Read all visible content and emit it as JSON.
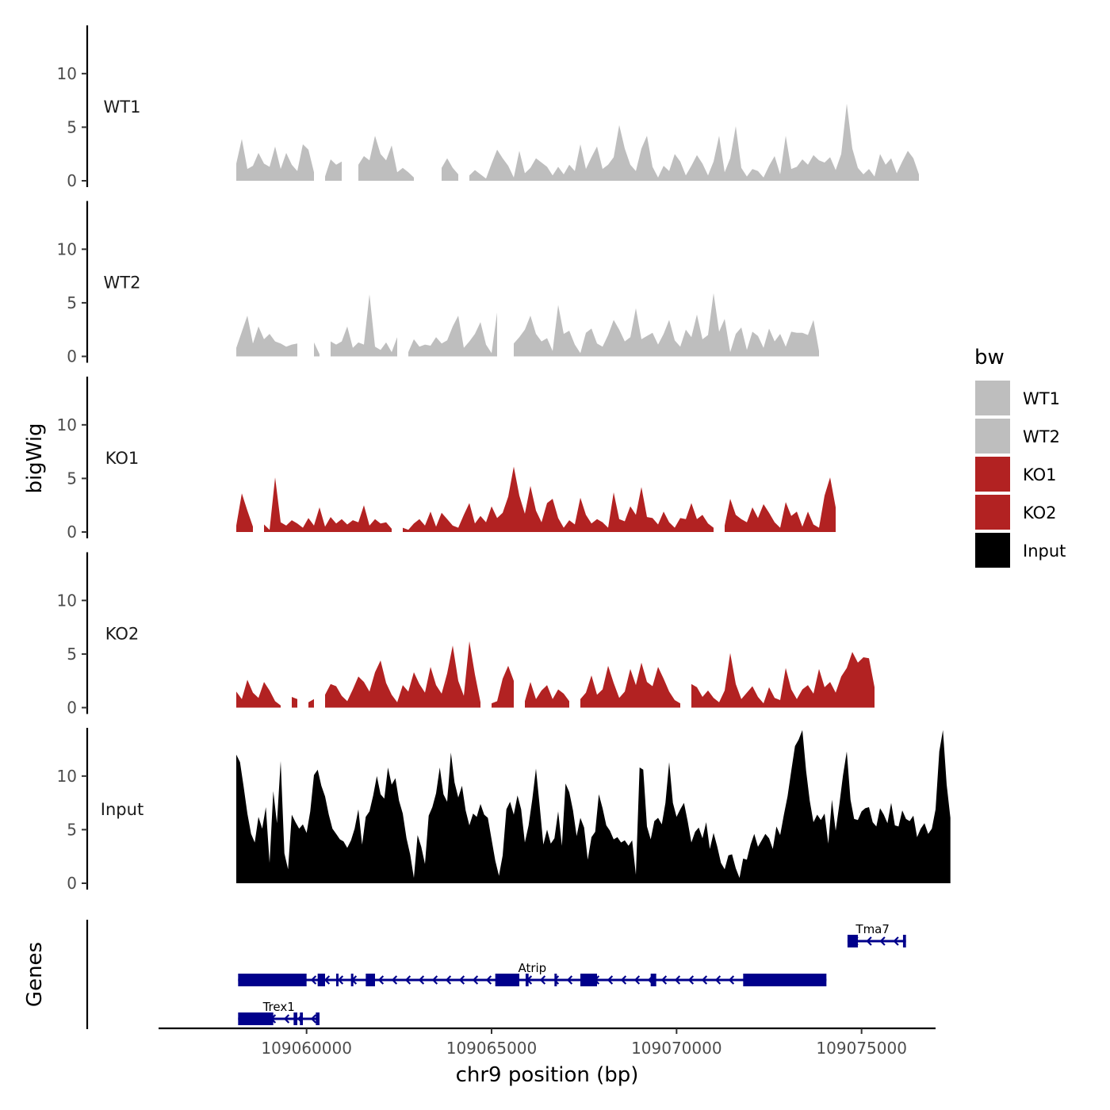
{
  "chart_data": {
    "type": "area",
    "title": "",
    "ylabel": "bigWig",
    "gene_track_label": "Genes",
    "xlabel": "chr9 position (bp)",
    "xlim": [
      109056000,
      109077000
    ],
    "ylim": [
      0,
      14.5
    ],
    "y_ticks": [
      0,
      5,
      10
    ],
    "x_ticks": [
      {
        "value": 109060000,
        "label": "109060000"
      },
      {
        "value": 109065000,
        "label": "109065000"
      },
      {
        "value": 109070000,
        "label": "109070000"
      },
      {
        "value": 109075000,
        "label": "109075000"
      }
    ],
    "grid": false,
    "legend": {
      "title": "bw",
      "position": "right",
      "entries": [
        {
          "label": "WT1",
          "color": "#bebebe"
        },
        {
          "label": "WT2",
          "color": "#bebebe"
        },
        {
          "label": "KO1",
          "color": "#b22222"
        },
        {
          "label": "KO2",
          "color": "#b22222"
        },
        {
          "label": "Input",
          "color": "#000000"
        }
      ]
    },
    "series": [
      {
        "name": "WT1",
        "label": "WT1",
        "color": "#bebebe",
        "x_start": 109058100,
        "step": 150,
        "values": [
          1.6,
          3.9,
          1.1,
          1.4,
          2.6,
          1.6,
          1.3,
          3.2,
          1.1,
          2.6,
          1.5,
          0.9,
          3.4,
          2.9,
          0.8,
          null,
          0.4,
          2.0,
          1.5,
          1.8,
          null,
          null,
          1.5,
          2.3,
          1.9,
          4.2,
          2.5,
          1.9,
          3.3,
          0.8,
          1.2,
          0.8,
          0.3,
          null,
          null,
          null,
          null,
          1.2,
          2.1,
          1.2,
          0.6,
          null,
          0.5,
          1.0,
          0.6,
          0.2,
          1.6,
          2.9,
          2.1,
          1.4,
          0.3,
          2.8,
          0.7,
          1.2,
          2.1,
          1.7,
          1.3,
          0.5,
          1.3,
          0.6,
          1.5,
          0.9,
          3.4,
          1.1,
          2.2,
          3.2,
          1.1,
          1.5,
          2.2,
          5.2,
          3.0,
          1.5,
          0.9,
          3.0,
          4.2,
          1.3,
          0.3,
          1.4,
          0.9,
          2.5,
          1.8,
          0.5,
          1.4,
          2.4,
          1.6,
          0.5,
          1.8,
          4.2,
          0.8,
          2.1,
          5.1,
          1.2,
          0.4,
          1.1,
          0.9,
          0.3,
          1.4,
          2.3,
          0.6,
          4.2,
          1.1,
          1.3,
          2.0,
          1.5,
          2.4,
          1.9,
          1.7,
          2.2,
          1.0,
          2.5,
          7.2,
          3.0,
          1.2,
          0.6,
          1.1,
          0.4,
          2.5,
          1.5,
          2.1,
          0.7,
          1.8,
          2.8,
          2.1,
          0.6
        ]
      },
      {
        "name": "WT2",
        "label": "WT2",
        "color": "#bebebe",
        "x_start": 109058100,
        "step": 150,
        "values": [
          0.8,
          2.3,
          3.8,
          1.2,
          2.8,
          1.6,
          2.1,
          1.4,
          1.2,
          0.9,
          1.1,
          1.2,
          null,
          null,
          1.3,
          0.2,
          null,
          1.4,
          1.1,
          1.4,
          2.8,
          0.8,
          1.3,
          1.1,
          5.8,
          0.9,
          0.6,
          1.3,
          0.4,
          1.8,
          null,
          0.4,
          1.6,
          0.9,
          1.1,
          1.0,
          1.8,
          1.2,
          1.5,
          2.8,
          3.8,
          0.8,
          1.4,
          2.1,
          3.2,
          1.1,
          0.3,
          4.1,
          null,
          null,
          1.2,
          1.8,
          2.5,
          3.8,
          2.1,
          1.4,
          1.7,
          0.5,
          4.8,
          2.1,
          2.4,
          1.1,
          0.3,
          2.2,
          2.6,
          1.2,
          0.9,
          2.0,
          3.4,
          2.5,
          1.4,
          1.8,
          4.5,
          1.6,
          1.9,
          2.2,
          1.1,
          2.1,
          3.4,
          1.5,
          0.9,
          2.5,
          1.8,
          3.9,
          1.6,
          2.0,
          5.9,
          2.3,
          3.5,
          0.4,
          2.1,
          2.7,
          0.6,
          2.3,
          1.9,
          0.8,
          2.6,
          1.4,
          2.1,
          0.9,
          2.3,
          2.2,
          2.2,
          2.0,
          3.4,
          0.5
        ]
      },
      {
        "name": "KO1",
        "label": "KO1",
        "color": "#b22222",
        "x_start": 109058100,
        "step": 150,
        "values": [
          0.6,
          3.6,
          2.0,
          0.5,
          null,
          0.7,
          0.2,
          5.1,
          0.9,
          0.6,
          1.1,
          0.8,
          0.4,
          1.3,
          0.6,
          2.3,
          0.5,
          1.4,
          0.8,
          1.2,
          0.7,
          1.1,
          0.9,
          2.5,
          0.6,
          1.2,
          0.8,
          0.9,
          0.3,
          null,
          0.4,
          0.2,
          0.8,
          1.2,
          0.6,
          1.9,
          0.5,
          1.8,
          1.2,
          0.6,
          0.4,
          1.6,
          2.7,
          0.8,
          1.5,
          0.9,
          2.4,
          1.3,
          1.8,
          3.3,
          6.1,
          3.4,
          1.7,
          4.3,
          2.0,
          0.9,
          2.7,
          3.1,
          1.3,
          0.4,
          1.1,
          0.7,
          3.2,
          1.6,
          0.8,
          1.2,
          0.9,
          0.4,
          3.7,
          1.2,
          1.0,
          2.4,
          1.6,
          4.2,
          1.4,
          1.3,
          0.7,
          1.9,
          0.9,
          0.4,
          1.3,
          1.2,
          2.7,
          1.2,
          1.6,
          0.8,
          0.4,
          null,
          0.6,
          3.1,
          1.6,
          1.2,
          0.9,
          2.3,
          1.3,
          2.6,
          1.8,
          0.9,
          0.4,
          2.8,
          1.5,
          1.9,
          0.5,
          1.9,
          0.7,
          0.4,
          3.4,
          5.1,
          2.3
        ]
      },
      {
        "name": "KO2",
        "label": "KO2",
        "color": "#b22222",
        "x_start": 109058100,
        "step": 150,
        "values": [
          1.5,
          0.8,
          2.6,
          1.4,
          0.9,
          2.4,
          1.6,
          0.6,
          0.2,
          null,
          1.0,
          0.8,
          null,
          0.5,
          0.8,
          null,
          1.2,
          2.2,
          2.0,
          1.1,
          0.6,
          1.7,
          2.9,
          2.4,
          1.5,
          3.3,
          4.4,
          2.3,
          1.2,
          0.5,
          2.1,
          1.5,
          3.3,
          2.2,
          1.4,
          3.8,
          2.1,
          1.3,
          3.2,
          5.8,
          2.5,
          1.1,
          6.2,
          3.1,
          0.5,
          null,
          0.4,
          0.6,
          2.7,
          3.9,
          2.5,
          null,
          0.6,
          2.4,
          0.8,
          1.6,
          2.1,
          0.8,
          1.7,
          1.3,
          0.6,
          null,
          0.8,
          1.4,
          3.0,
          1.2,
          1.7,
          3.9,
          2.3,
          0.9,
          1.5,
          3.6,
          2.1,
          4.2,
          2.4,
          2.0,
          3.8,
          2.7,
          1.5,
          0.7,
          0.4,
          null,
          2.2,
          1.9,
          1.0,
          1.6,
          0.9,
          0.5,
          1.6,
          5.1,
          2.2,
          0.8,
          1.4,
          2.0,
          1.0,
          0.4,
          1.9,
          0.9,
          0.7,
          3.7,
          1.7,
          0.8,
          1.7,
          2.1,
          1.3,
          3.6,
          1.9,
          2.4,
          1.4,
          2.9,
          3.7,
          5.2,
          4.2,
          4.7,
          4.6,
          1.9
        ]
      },
      {
        "name": "Input",
        "label": "Input",
        "color": "#000000",
        "x_start": 109058100,
        "step": 100,
        "values": [
          12.0,
          11.3,
          9.0,
          6.5,
          4.6,
          3.8,
          6.2,
          5.1,
          7.1,
          1.9,
          8.6,
          5.6,
          11.4,
          2.8,
          1.3,
          6.4,
          5.7,
          5.1,
          5.5,
          4.7,
          6.7,
          10.1,
          10.6,
          9.1,
          8.1,
          6.4,
          5.1,
          4.6,
          4.1,
          3.9,
          3.3,
          4.0,
          5.1,
          6.9,
          3.6,
          6.2,
          6.7,
          8.2,
          10.0,
          8.3,
          7.9,
          10.8,
          9.2,
          9.8,
          7.7,
          6.5,
          4.2,
          2.7,
          0.5,
          4.5,
          3.4,
          1.8,
          6.3,
          7.1,
          8.4,
          10.8,
          8.3,
          7.6,
          12.2,
          9.4,
          8.0,
          9.1,
          6.8,
          5.4,
          6.5,
          6.2,
          7.4,
          6.4,
          6.1,
          4.1,
          2.1,
          0.7,
          2.6,
          6.9,
          7.6,
          6.4,
          8.2,
          6.9,
          3.8,
          5.4,
          7.8,
          10.7,
          7.2,
          3.6,
          5.0,
          3.7,
          4.2,
          6.7,
          3.5,
          9.3,
          8.5,
          6.8,
          4.4,
          6.1,
          5.2,
          2.2,
          4.3,
          4.8,
          8.3,
          7.0,
          5.4,
          4.9,
          4.1,
          4.3,
          3.8,
          4.0,
          3.5,
          4.0,
          0.8,
          10.8,
          10.6,
          5.3,
          4.1,
          5.8,
          6.1,
          5.5,
          7.5,
          11.3,
          7.5,
          6.2,
          6.9,
          7.5,
          5.8,
          3.8,
          4.8,
          5.2,
          4.2,
          5.7,
          3.2,
          4.7,
          3.4,
          1.9,
          1.3,
          2.6,
          2.7,
          1.4,
          0.5,
          2.3,
          2.2,
          3.6,
          4.6,
          3.4,
          4.0,
          4.6,
          4.2,
          3.2,
          5.3,
          4.5,
          6.4,
          8.1,
          10.5,
          12.8,
          13.4,
          14.3,
          10.5,
          7.7,
          5.7,
          6.4,
          5.9,
          6.5,
          3.7,
          7.8,
          4.9,
          7.4,
          10.1,
          12.3,
          7.8,
          6.0,
          5.9,
          6.7,
          7.0,
          7.1,
          5.7,
          5.3,
          7.0,
          6.4,
          5.6,
          7.5,
          5.4,
          5.3,
          6.8,
          6.0,
          5.8,
          6.3,
          4.3,
          5.1,
          5.6,
          4.6,
          5.1,
          6.9,
          12.3,
          14.3,
          9.2,
          6.1
        ]
      }
    ],
    "genes": [
      {
        "name": "Trex1",
        "start": 109058150,
        "end": 109060350,
        "strand": "-",
        "row": 3,
        "exons": [
          [
            109058150,
            109059100
          ],
          [
            109059650,
            109059750
          ],
          [
            109059820,
            109059900
          ],
          [
            109060250,
            109060350
          ]
        ]
      },
      {
        "name": "Atrip",
        "start": 109058150,
        "end": 109074050,
        "strand": "-",
        "row": 2,
        "exons": [
          [
            109058150,
            109060000
          ],
          [
            109060300,
            109060500
          ],
          [
            109060800,
            109060860
          ],
          [
            109061200,
            109061260
          ],
          [
            109061600,
            109061850
          ],
          [
            109065100,
            109065750
          ],
          [
            109065920,
            109066000
          ],
          [
            109066700,
            109066760
          ],
          [
            109067400,
            109067850
          ],
          [
            109069300,
            109069450
          ],
          [
            109071800,
            109074050
          ]
        ]
      },
      {
        "name": "Tma7",
        "start": 109074620,
        "end": 109076200,
        "strand": "-",
        "row": 1,
        "exons": [
          [
            109074620,
            109074900
          ],
          [
            109076120,
            109076200
          ]
        ]
      }
    ],
    "gene_color": "#00008b"
  }
}
